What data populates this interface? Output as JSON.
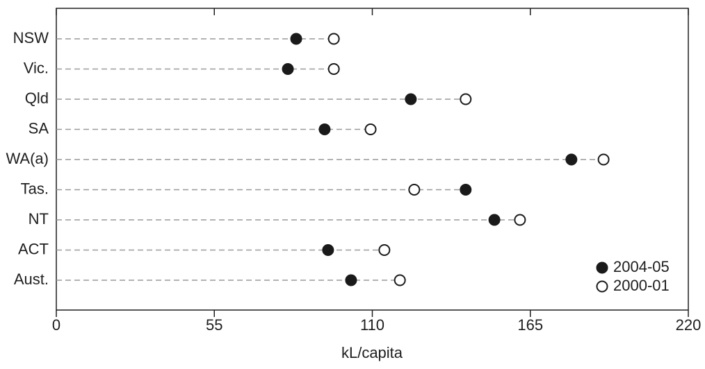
{
  "chart_data": {
    "type": "dot",
    "categories": [
      "NSW",
      "Vic.",
      "Qld",
      "SA",
      "WA(a)",
      "Tas.",
      "NT",
      "ACT",
      "Aust."
    ],
    "series": [
      {
        "name": "2004-05",
        "color": "#1a1a1a",
        "marker_fill": "filled",
        "values": [
          83.5,
          80.6,
          123.4,
          93.4,
          179.3,
          142.5,
          152.5,
          94.6,
          102.6
        ]
      },
      {
        "name": "2000-01",
        "color": "#1a1a1a",
        "marker_fill": "open",
        "values": [
          96.6,
          96.6,
          142.5,
          109.4,
          190.5,
          124.6,
          161.4,
          114.2,
          119.6
        ]
      }
    ],
    "xlabel": "kL/capita",
    "xlim": [
      0,
      220
    ],
    "xticks": [
      0,
      55,
      110,
      165,
      220
    ],
    "legend": "lower right"
  }
}
